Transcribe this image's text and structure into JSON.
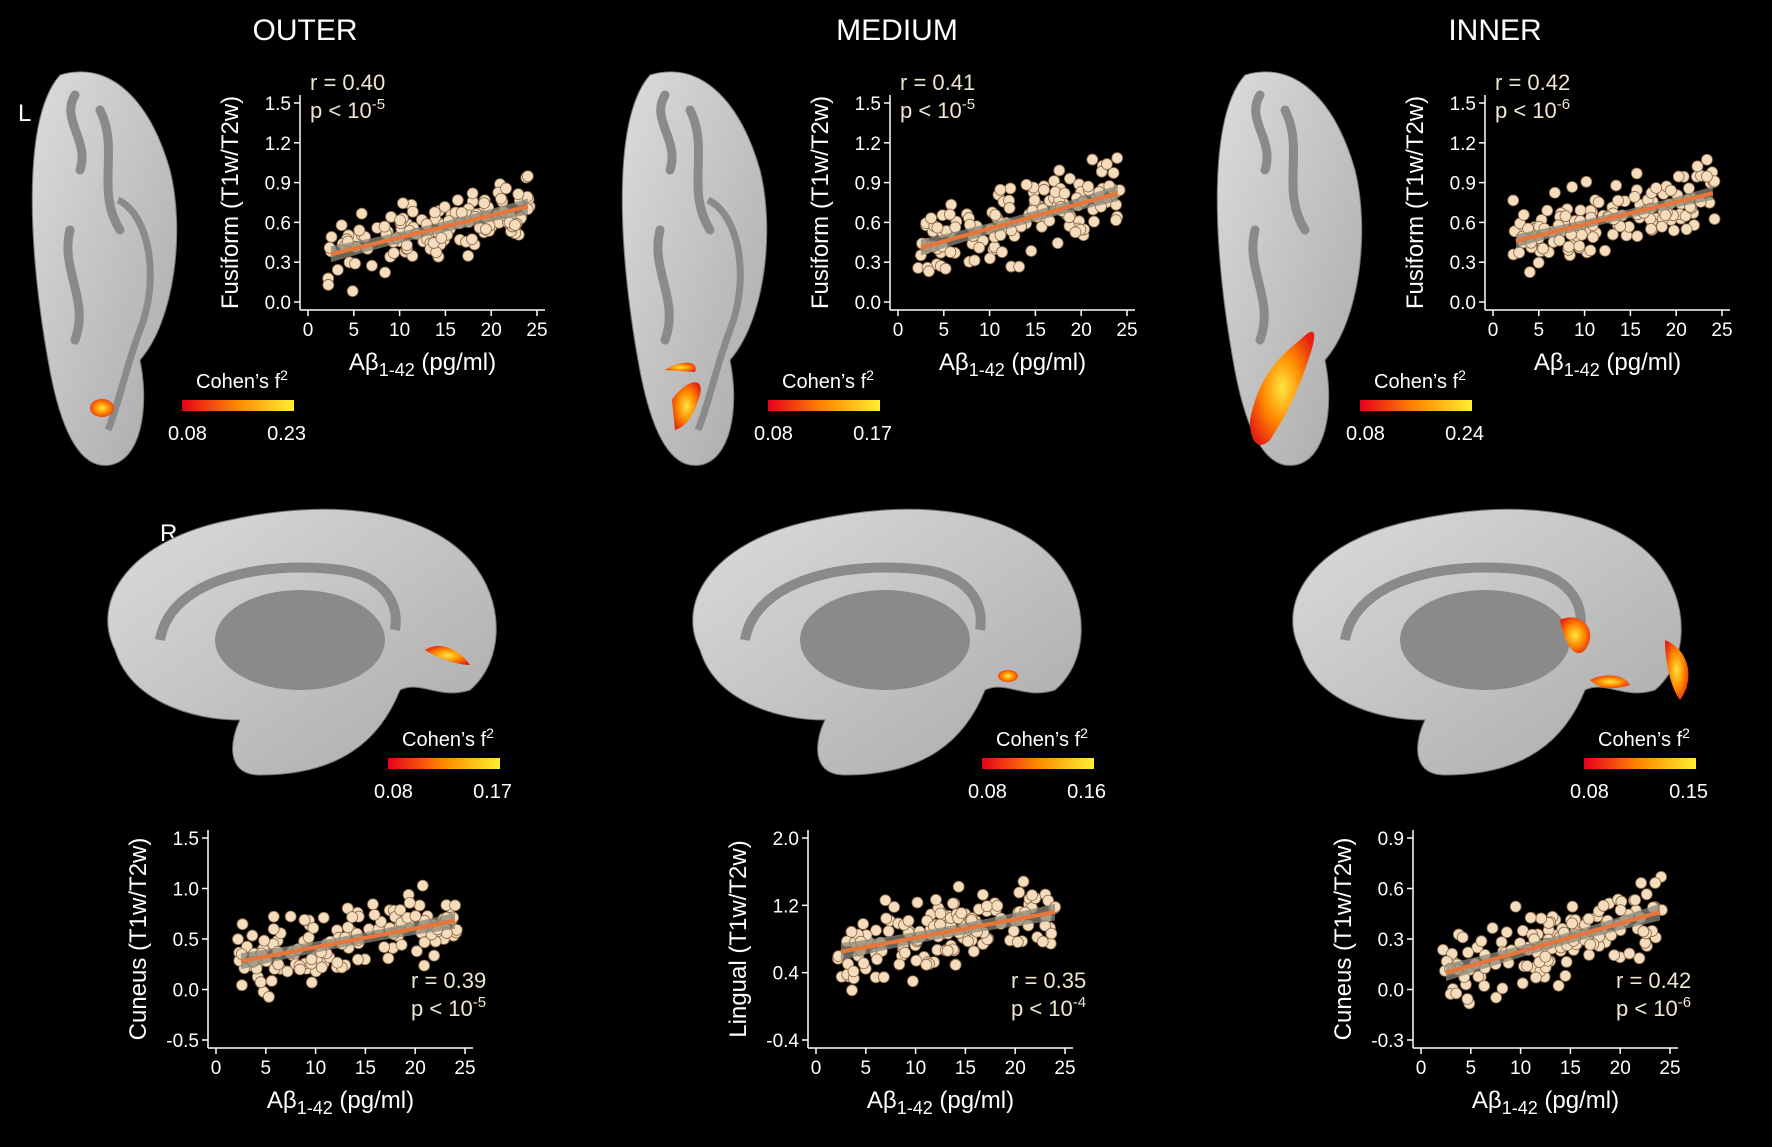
{
  "figure": {
    "columns": [
      "OUTER",
      "MEDIUM",
      "INNER"
    ],
    "hemispheres": {
      "left": "L",
      "right": "R"
    },
    "colors": {
      "point_fill": "#f5dcbc",
      "point_stroke": "#8a6a4a",
      "fit_line": "#e8763a",
      "ci_band": "#8a8778",
      "background": "#000000",
      "text": "#ffffff",
      "stats_text": "#f0e6d0"
    }
  },
  "colorbars": [
    {
      "label": "Cohen’s f",
      "sup": "2",
      "min": "0.08",
      "max": "0.23"
    },
    {
      "label": "Cohen’s f",
      "sup": "2",
      "min": "0.08",
      "max": "0.17"
    },
    {
      "label": "Cohen’s f",
      "sup": "2",
      "min": "0.08",
      "max": "0.24"
    },
    {
      "label": "Cohen’s f",
      "sup": "2",
      "min": "0.08",
      "max": "0.17"
    },
    {
      "label": "Cohen’s f",
      "sup": "2",
      "min": "0.08",
      "max": "0.16"
    },
    {
      "label": "Cohen’s f",
      "sup": "2",
      "min": "0.08",
      "max": "0.15"
    }
  ],
  "chart_data": [
    {
      "type": "scatter",
      "id": "outer-fusiform",
      "ylabel": "Fusiform (T1w/T2w)",
      "xlabel": "Aβ1-42 (pg/ml)",
      "xlim": [
        0,
        25
      ],
      "ylim": [
        0,
        1.5
      ],
      "xticks": [
        "0",
        "5",
        "10",
        "15",
        "20",
        "25"
      ],
      "yticks": [
        "0.0",
        "0.3",
        "0.6",
        "0.9",
        "1.2",
        "1.5"
      ],
      "stats": {
        "r": "r = 0.40",
        "p_base": "p < 10",
        "p_exp": "-5"
      },
      "fit": {
        "x": [
          2.5,
          24
        ],
        "y": [
          0.36,
          0.72
        ]
      },
      "ci": 0.06,
      "spread": 0.17,
      "seed": 11
    },
    {
      "type": "scatter",
      "id": "medium-fusiform",
      "ylabel": "Fusiform (T1w/T2w)",
      "xlabel": "Aβ1-42 (pg/ml)",
      "xlim": [
        0,
        25
      ],
      "ylim": [
        0,
        1.5
      ],
      "xticks": [
        "0",
        "5",
        "10",
        "15",
        "20",
        "25"
      ],
      "yticks": [
        "0.0",
        "0.3",
        "0.6",
        "0.9",
        "1.2",
        "1.5"
      ],
      "stats": {
        "r": "r = 0.41",
        "p_base": "p < 10",
        "p_exp": "-5"
      },
      "fit": {
        "x": [
          2.5,
          24
        ],
        "y": [
          0.41,
          0.82
        ]
      },
      "ci": 0.06,
      "spread": 0.18,
      "seed": 23
    },
    {
      "type": "scatter",
      "id": "inner-fusiform",
      "ylabel": "Fusiform (T1w/T2w)",
      "xlabel": "Aβ1-42 (pg/ml)",
      "xlim": [
        0,
        25
      ],
      "ylim": [
        0,
        1.5
      ],
      "xticks": [
        "0",
        "5",
        "10",
        "15",
        "20",
        "25"
      ],
      "yticks": [
        "0.0",
        "0.3",
        "0.6",
        "0.9",
        "1.2",
        "1.5"
      ],
      "stats": {
        "r": "r = 0.42",
        "p_base": "p < 10",
        "p_exp": "-6"
      },
      "fit": {
        "x": [
          2.5,
          24
        ],
        "y": [
          0.46,
          0.82
        ]
      },
      "ci": 0.05,
      "spread": 0.16,
      "seed": 37
    },
    {
      "type": "scatter",
      "id": "outer-cuneus",
      "ylabel": "Cuneus (T1w/T2w)",
      "xlabel": "Aβ1-42 (pg/ml)",
      "xlim": [
        0,
        25
      ],
      "ylim": [
        -0.5,
        1.5
      ],
      "xticks": [
        "0",
        "5",
        "10",
        "15",
        "20",
        "25"
      ],
      "yticks": [
        "-0.5",
        "0.0",
        "0.5",
        "1.0",
        "1.5"
      ],
      "stats": {
        "r": "r = 0.39",
        "p_base": "p < 10",
        "p_exp": "-5"
      },
      "fit": {
        "x": [
          2.5,
          24
        ],
        "y": [
          0.28,
          0.68
        ]
      },
      "ci": 0.08,
      "spread": 0.22,
      "seed": 41
    },
    {
      "type": "scatter",
      "id": "medium-lingual",
      "ylabel": "Lingual (T1w/T2w)",
      "xlabel": "Aβ1-42 (pg/ml)",
      "xlim": [
        0,
        25
      ],
      "ylim": [
        -0.4,
        2.0
      ],
      "xticks": [
        "0",
        "5",
        "10",
        "15",
        "20",
        "25"
      ],
      "yticks": [
        "-0.4",
        "0.4",
        "1.2",
        "2.0"
      ],
      "stats": {
        "r": "r = 0.35",
        "p_base": "p < 10",
        "p_exp": "-4"
      },
      "fit": {
        "x": [
          2.5,
          24
        ],
        "y": [
          0.65,
          1.12
        ]
      },
      "ci": 0.1,
      "spread": 0.3,
      "seed": 53
    },
    {
      "type": "scatter",
      "id": "inner-cuneus",
      "ylabel": "Cuneus (T1w/T2w)",
      "xlabel": "Aβ1-42 (pg/ml)",
      "xlim": [
        0,
        25
      ],
      "ylim": [
        -0.3,
        0.9
      ],
      "xticks": [
        "0",
        "5",
        "10",
        "15",
        "20",
        "25"
      ],
      "yticks": [
        "-0.3",
        "0.0",
        "0.3",
        "0.6",
        "0.9"
      ],
      "stats": {
        "r": "r = 0.42",
        "p_base": "p < 10",
        "p_exp": "-6"
      },
      "fit": {
        "x": [
          2.5,
          24
        ],
        "y": [
          0.1,
          0.46
        ]
      },
      "ci": 0.05,
      "spread": 0.14,
      "seed": 67
    }
  ]
}
